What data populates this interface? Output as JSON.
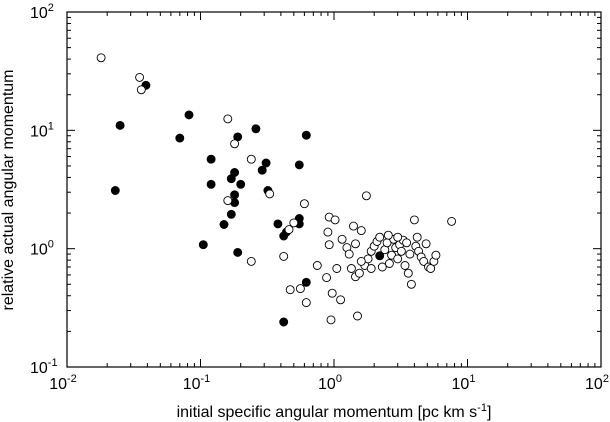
{
  "chart_data": {
    "type": "scatter",
    "title": "",
    "xlabel": "initial specific angular momentum [pc km s",
    "xlabel_exp": "-1",
    "xlabel_close": "]",
    "ylabel": "relative actual angular momentum",
    "xscale": "log",
    "yscale": "log",
    "xlim": [
      0.01,
      100
    ],
    "ylim": [
      0.1,
      100
    ],
    "grid": false,
    "legend": "none",
    "x_ticks": [
      {
        "base": "10",
        "exp": "-2",
        "value": 0.01
      },
      {
        "base": "10",
        "exp": "-1",
        "value": 0.1
      },
      {
        "base": "10",
        "exp": "0",
        "value": 1
      },
      {
        "base": "10",
        "exp": "1",
        "value": 10
      },
      {
        "base": "10",
        "exp": "2",
        "value": 100
      }
    ],
    "y_ticks": [
      {
        "base": "10",
        "exp": "-1",
        "value": 0.1
      },
      {
        "base": "10",
        "exp": "0",
        "value": 1
      },
      {
        "base": "10",
        "exp": "1",
        "value": 10
      },
      {
        "base": "10",
        "exp": "2",
        "value": 100
      }
    ],
    "series": [
      {
        "marker": "filled-circle",
        "color": "#000000",
        "points": [
          [
            0.039,
            24
          ],
          [
            0.025,
            11
          ],
          [
            0.023,
            3.1
          ],
          [
            0.082,
            13.5
          ],
          [
            0.07,
            8.6
          ],
          [
            0.12,
            5.7
          ],
          [
            0.12,
            3.5
          ],
          [
            0.105,
            1.08
          ],
          [
            0.15,
            1.6
          ],
          [
            0.19,
            8.8
          ],
          [
            0.26,
            10.3
          ],
          [
            0.62,
            9.1
          ],
          [
            0.18,
            4.4
          ],
          [
            0.17,
            3.9
          ],
          [
            0.2,
            3.5
          ],
          [
            0.31,
            5.3
          ],
          [
            0.29,
            4.6
          ],
          [
            0.55,
            5.1
          ],
          [
            0.18,
            2.85
          ],
          [
            0.17,
            1.95
          ],
          [
            0.18,
            2.45
          ],
          [
            0.32,
            3.1
          ],
          [
            0.38,
            1.62
          ],
          [
            0.55,
            1.62
          ],
          [
            0.55,
            1.8
          ],
          [
            0.44,
            1.38
          ],
          [
            0.42,
            1.28
          ],
          [
            0.19,
            0.93
          ],
          [
            0.62,
            0.52
          ],
          [
            0.42,
            0.24
          ],
          [
            2.2,
            0.87
          ]
        ]
      },
      {
        "marker": "open-circle",
        "color": "#000000",
        "points": [
          [
            0.018,
            41
          ],
          [
            0.035,
            28
          ],
          [
            0.036,
            22
          ],
          [
            0.16,
            12.5
          ],
          [
            0.18,
            7.7
          ],
          [
            0.24,
            5.7
          ],
          [
            0.33,
            2.9
          ],
          [
            0.16,
            2.55
          ],
          [
            0.24,
            0.78
          ],
          [
            0.42,
            0.86
          ],
          [
            0.47,
            0.45
          ],
          [
            0.6,
            2.4
          ],
          [
            0.5,
            1.65
          ],
          [
            0.46,
            1.45
          ],
          [
            0.56,
            0.46
          ],
          [
            0.62,
            0.35
          ],
          [
            0.75,
            0.72
          ],
          [
            0.92,
            1.85
          ],
          [
            1.02,
            1.75
          ],
          [
            0.9,
            1.38
          ],
          [
            0.92,
            1.08
          ],
          [
            0.88,
            0.57
          ],
          [
            0.97,
            0.42
          ],
          [
            0.95,
            0.25
          ],
          [
            1.12,
            0.37
          ],
          [
            1.5,
            0.27
          ],
          [
            1.75,
            2.8
          ],
          [
            1.4,
            1.55
          ],
          [
            1.6,
            1.42
          ],
          [
            1.15,
            1.2
          ],
          [
            1.25,
            1.02
          ],
          [
            1.3,
            0.9
          ],
          [
            1.35,
            0.68
          ],
          [
            1.45,
            0.58
          ],
          [
            1.55,
            0.62
          ],
          [
            1.7,
            0.72
          ],
          [
            1.8,
            0.82
          ],
          [
            1.9,
            0.95
          ],
          [
            2.0,
            1.05
          ],
          [
            2.1,
            1.15
          ],
          [
            2.2,
            1.25
          ],
          [
            2.4,
            0.98
          ],
          [
            2.5,
            1.12
          ],
          [
            2.6,
            0.75
          ],
          [
            2.7,
            0.88
          ],
          [
            2.8,
            1.2
          ],
          [
            2.9,
            1.02
          ],
          [
            3.0,
            0.82
          ],
          [
            3.1,
            1.08
          ],
          [
            3.2,
            0.95
          ],
          [
            3.3,
            1.18
          ],
          [
            3.4,
            0.72
          ],
          [
            3.6,
            0.62
          ],
          [
            3.7,
            0.9
          ],
          [
            3.8,
            0.5
          ],
          [
            4.0,
            1.75
          ],
          [
            4.1,
            1.05
          ],
          [
            4.3,
            0.95
          ],
          [
            4.5,
            0.85
          ],
          [
            4.7,
            0.78
          ],
          [
            4.9,
            1.1
          ],
          [
            5.1,
            0.7
          ],
          [
            5.3,
            0.68
          ],
          [
            5.6,
            0.78
          ],
          [
            5.8,
            0.88
          ],
          [
            7.6,
            1.7
          ],
          [
            1.6,
            0.78
          ],
          [
            2.3,
            0.7
          ],
          [
            2.55,
            1.3
          ],
          [
            1.05,
            0.68
          ],
          [
            1.9,
            0.68
          ],
          [
            3.5,
            1.12
          ],
          [
            4.2,
            1.25
          ],
          [
            1.45,
            1.1
          ],
          [
            3.0,
            1.25
          ]
        ]
      }
    ]
  }
}
